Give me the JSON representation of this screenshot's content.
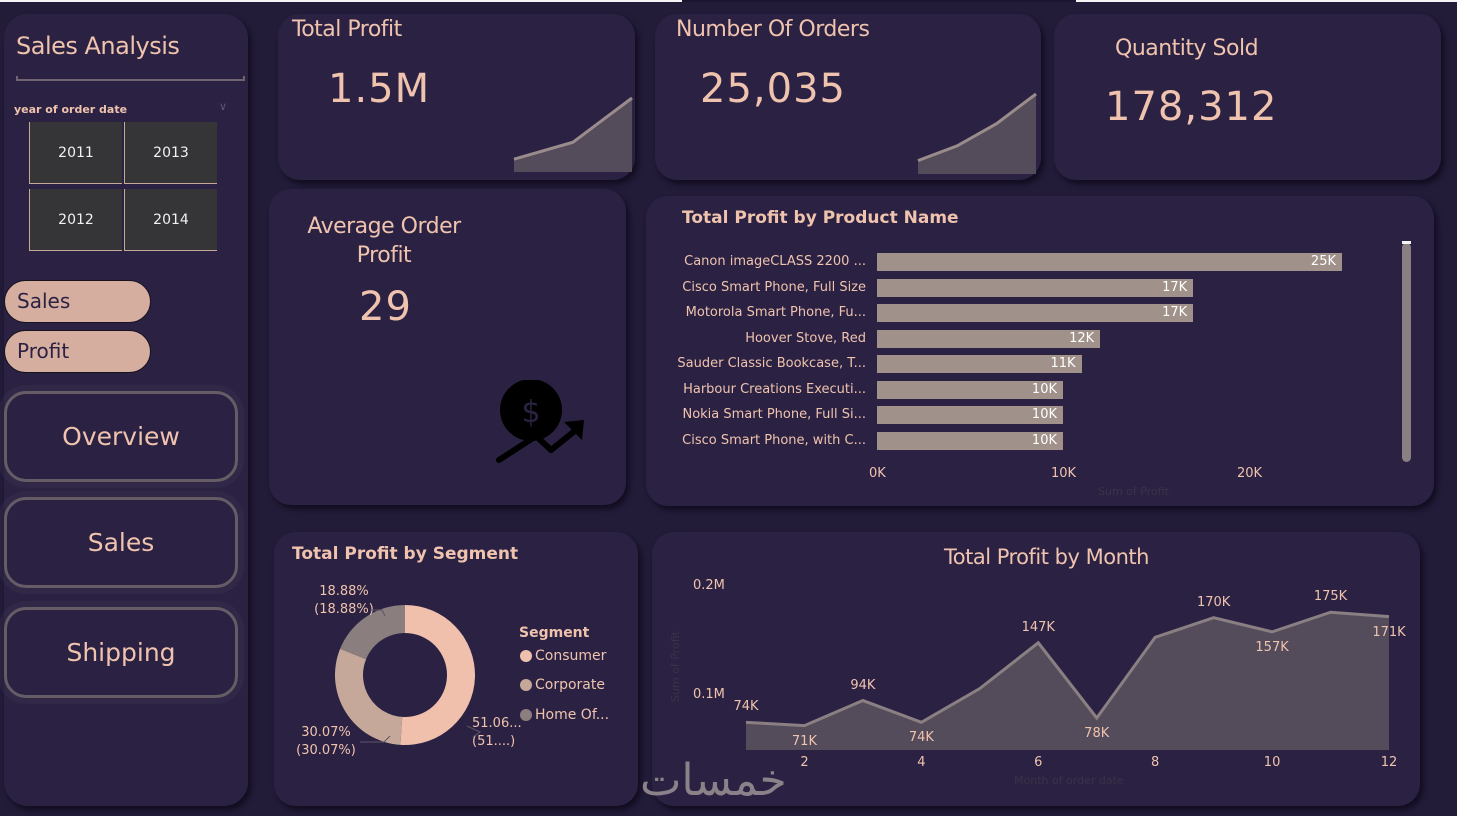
{
  "sidebar": {
    "title": "Sales Analysis",
    "slicer": {
      "label": "year of order date",
      "years": [
        "2011",
        "2013",
        "2012",
        "2014"
      ]
    },
    "toggles": [
      "Sales",
      "Profit"
    ],
    "nav": [
      "Overview",
      "Sales",
      "Shipping"
    ]
  },
  "kpis": {
    "total_profit": {
      "title": "Total Profit",
      "value": "1.5M"
    },
    "orders": {
      "title": "Number Of Orders",
      "value": "25,035"
    },
    "quantity": {
      "title": "Quantity Sold",
      "value": "178,312"
    },
    "avg_order_profit": {
      "title_line1": "Average Order",
      "title_line2": "Profit",
      "value": "29",
      "icon": "dollar-growth-icon"
    }
  },
  "colors": {
    "background": "#221c39",
    "card": "#2b2243",
    "accent_text": "#f0c3ae",
    "bar": "#a0918a",
    "area_fill": "#544c5a",
    "area_line": "#8a7f82",
    "consumer": "#f0c0ac",
    "corporate": "#c5a899",
    "home_office": "#8a7e7e"
  },
  "watermark": "خمسات",
  "chart_data": [
    {
      "type": "bar",
      "title": "Total Profit by Product Name",
      "categories": [
        "Canon imageCLASS 2200 ...",
        "Cisco Smart Phone, Full Size",
        "Motorola Smart Phone, Fu...",
        "Hoover Stove, Red",
        "Sauder Classic Bookcase, T...",
        "Harbour Creations Executi...",
        "Nokia Smart Phone, Full Si...",
        "Cisco Smart Phone, with C..."
      ],
      "values": [
        25,
        17,
        17,
        12,
        11,
        10,
        10,
        10
      ],
      "value_labels": [
        "25K",
        "17K",
        "17K",
        "12K",
        "11K",
        "10K",
        "10K",
        "10K"
      ],
      "value_units": "thousands",
      "xlabel": "Sum of Profit",
      "xticks": [
        "0K",
        "10K",
        "20K"
      ],
      "xlim": [
        0,
        27.5
      ]
    },
    {
      "type": "pie",
      "title": "Total Profit by Segment",
      "legend_title": "Segment",
      "legend_position": "right",
      "categories": [
        "Consumer",
        "Corporate",
        "Home Of..."
      ],
      "values": [
        51.06,
        30.07,
        18.88
      ],
      "labels": [
        [
          "51.06...",
          "(51....)"
        ],
        [
          "30.07%",
          "(30.07%)"
        ],
        [
          "18.88%",
          "(18.88%)"
        ]
      ]
    },
    {
      "type": "area",
      "title": "Total Profit by Month",
      "xlabel": "Month of order date",
      "ylabel": "Sum of Profit",
      "x": [
        1,
        2,
        3,
        4,
        5,
        6,
        7,
        8,
        9,
        10,
        11,
        12
      ],
      "values": [
        74,
        71,
        94,
        74,
        105,
        147,
        78,
        152,
        170,
        157,
        175,
        171
      ],
      "value_units": "thousands",
      "point_labels": [
        "74K",
        "71K",
        "94K",
        "74K",
        "",
        "147K",
        "78K",
        "",
        "170K",
        "157K",
        "175K",
        "171K"
      ],
      "xticks": [
        "2",
        "4",
        "6",
        "8",
        "10",
        "12"
      ],
      "yticks": [
        "0.1M",
        "0.2M"
      ],
      "ylim": [
        50,
        200
      ]
    }
  ],
  "sparklines": {
    "total_profit": [
      0.1,
      0.35,
      1.0
    ],
    "orders": [
      0.1,
      0.3,
      0.6,
      1.0
    ]
  }
}
